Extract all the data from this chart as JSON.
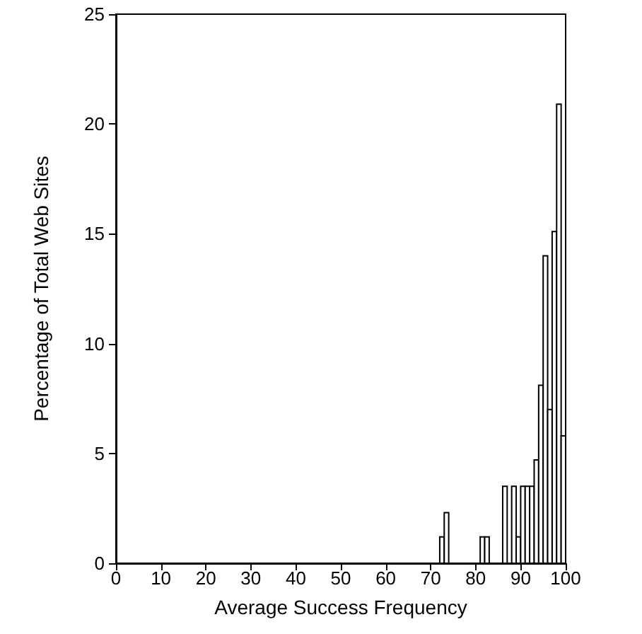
{
  "chart_data": {
    "type": "histogram",
    "xlabel": "Average Success Frequency",
    "ylabel": "Percentage of Total Web Sites",
    "bins": [
      0,
      1,
      2,
      3,
      4,
      5,
      6,
      7,
      8,
      9,
      10,
      11,
      12,
      13,
      14,
      15,
      16,
      17,
      18,
      19,
      20,
      21,
      22,
      23,
      24,
      25,
      26,
      27,
      28,
      29,
      30,
      31,
      32,
      33,
      34,
      35,
      36,
      37,
      38,
      39,
      40,
      41,
      42,
      43,
      44,
      45,
      46,
      47,
      48,
      49,
      50,
      51,
      52,
      53,
      54,
      55,
      56,
      57,
      58,
      59,
      60,
      61,
      62,
      63,
      64,
      65,
      66,
      67,
      68,
      69,
      70,
      71,
      72,
      73,
      74,
      75,
      76,
      77,
      78,
      79,
      80,
      81,
      82,
      83,
      84,
      85,
      86,
      87,
      88,
      89,
      90,
      91,
      92,
      93,
      94,
      95,
      96,
      97,
      98,
      99,
      100
    ],
    "values": [
      0,
      0,
      0,
      0,
      0,
      0,
      0,
      0,
      0,
      0,
      0,
      0,
      0,
      0,
      0,
      0,
      0,
      0,
      0,
      0,
      0,
      0,
      0,
      0,
      0,
      0,
      0,
      0,
      0,
      0,
      0,
      0,
      0,
      0,
      0,
      0,
      0,
      0,
      0,
      0,
      0,
      0,
      0,
      0,
      0,
      0,
      0,
      0,
      0,
      0,
      0,
      0,
      0,
      0,
      0,
      0,
      0,
      0,
      0,
      0,
      0,
      0,
      0,
      0,
      0,
      0,
      0,
      0,
      0,
      0,
      0,
      0,
      1.2,
      2.3,
      0,
      0,
      0,
      0,
      0,
      0,
      0,
      1.2,
      1.2,
      0,
      0,
      0,
      3.5,
      0,
      3.5,
      1.2,
      3.5,
      3.5,
      3.5,
      4.7,
      8.1,
      14.0,
      7.0,
      15.1,
      20.9,
      5.8
    ],
    "color": "#ffffff",
    "xlim": [
      0,
      100
    ],
    "xticks": [
      0,
      10,
      20,
      30,
      40,
      50,
      60,
      70,
      80,
      90,
      100
    ],
    "ylim": [
      0,
      25
    ],
    "yticks": [
      0,
      5,
      10,
      15,
      20,
      25
    ],
    "grid": false
  }
}
